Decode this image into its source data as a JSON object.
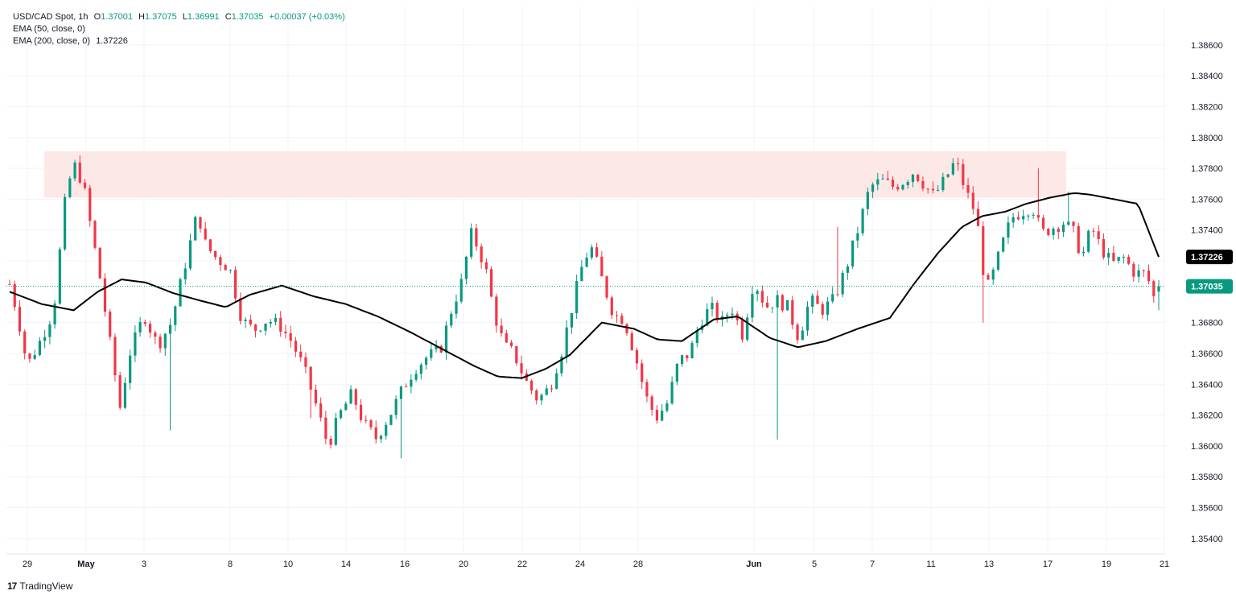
{
  "legend": {
    "symbol": "USD/CAD Spot, 1h",
    "o_label": "O",
    "o": "1.37001",
    "h_label": "H",
    "h": "1.37075",
    "l_label": "L",
    "l": "1.36991",
    "c_label": "C",
    "c": "1.37035",
    "change": "+0.00037 (+0.03%)",
    "ema50": "EMA (50, close, 0)",
    "ema200": "EMA (200, close, 0)",
    "ema200_value": "1.37226"
  },
  "brand": {
    "logo": "17",
    "name": "TradingView"
  },
  "colors": {
    "up": "#089981",
    "down": "#f23645",
    "ema": "#000000",
    "zone": "#fde8e8",
    "grid": "#f0f3fa",
    "last_price": "#089981"
  },
  "chart_data": {
    "type": "candlestick",
    "symbol": "USD/CAD Spot",
    "interval": "1h",
    "ylim": [
      1.353,
      1.3885
    ],
    "y_ticks": [
      "1.35400",
      "1.35600",
      "1.35800",
      "1.36000",
      "1.36200",
      "1.36400",
      "1.36600",
      "1.36800",
      "1.37200",
      "1.37400",
      "1.37600",
      "1.37800",
      "1.38000",
      "1.38200",
      "1.38400",
      "1.38600"
    ],
    "x_tick_labels": [
      "29",
      "May",
      "3",
      "8",
      "10",
      "14",
      "16",
      "20",
      "22",
      "24",
      "28",
      "Jun",
      "5",
      "7",
      "11",
      "13",
      "17",
      "19",
      "21"
    ],
    "price_labels": {
      "ema200": "1.37226",
      "last": "1.37035"
    },
    "last_price": 1.37035,
    "resistance_zone": {
      "low": 1.3761,
      "high": 1.3791
    },
    "price_anchors": [
      [
        0,
        1.3705
      ],
      [
        10,
        1.3685
      ],
      [
        22,
        1.3652
      ],
      [
        40,
        1.367
      ],
      [
        55,
        1.3688
      ],
      [
        70,
        1.3762
      ],
      [
        80,
        1.3783
      ],
      [
        92,
        1.377
      ],
      [
        102,
        1.374
      ],
      [
        112,
        1.3712
      ],
      [
        125,
        1.3668
      ],
      [
        138,
        1.3625
      ],
      [
        150,
        1.366
      ],
      [
        168,
        1.3685
      ],
      [
        185,
        1.3665
      ],
      [
        202,
        1.368
      ],
      [
        218,
        1.3715
      ],
      [
        235,
        1.3752
      ],
      [
        245,
        1.373
      ],
      [
        258,
        1.3722
      ],
      [
        275,
        1.3715
      ],
      [
        290,
        1.3682
      ],
      [
        305,
        1.3675
      ],
      [
        322,
        1.3682
      ],
      [
        338,
        1.3678
      ],
      [
        352,
        1.3668
      ],
      [
        368,
        1.365
      ],
      [
        382,
        1.3628
      ],
      [
        398,
        1.36
      ],
      [
        412,
        1.362
      ],
      [
        428,
        1.3634
      ],
      [
        442,
        1.3615
      ],
      [
        458,
        1.3605
      ],
      [
        475,
        1.362
      ],
      [
        492,
        1.3638
      ],
      [
        506,
        1.365
      ],
      [
        522,
        1.3658
      ],
      [
        538,
        1.3662
      ],
      [
        552,
        1.3688
      ],
      [
        566,
        1.3708
      ],
      [
        576,
        1.3738
      ],
      [
        586,
        1.3728
      ],
      [
        596,
        1.3712
      ],
      [
        606,
        1.3685
      ],
      [
        618,
        1.3665
      ],
      [
        630,
        1.366
      ],
      [
        645,
        1.3642
      ],
      [
        660,
        1.363
      ],
      [
        675,
        1.3638
      ],
      [
        690,
        1.3662
      ],
      [
        705,
        1.3695
      ],
      [
        718,
        1.3722
      ],
      [
        728,
        1.3728
      ],
      [
        742,
        1.3705
      ],
      [
        755,
        1.3685
      ],
      [
        768,
        1.3682
      ],
      [
        782,
        1.3658
      ],
      [
        795,
        1.3632
      ],
      [
        808,
        1.3618
      ],
      [
        822,
        1.3628
      ],
      [
        836,
        1.3655
      ],
      [
        850,
        1.366
      ],
      [
        862,
        1.368
      ],
      [
        876,
        1.369
      ],
      [
        890,
        1.368
      ],
      [
        902,
        1.369
      ],
      [
        916,
        1.3672
      ],
      [
        930,
        1.3708
      ],
      [
        945,
        1.369
      ],
      [
        958,
        1.3695
      ],
      [
        972,
        1.369
      ],
      [
        986,
        1.367
      ],
      [
        1000,
        1.3695
      ],
      [
        1015,
        1.3688
      ],
      [
        1030,
        1.3695
      ],
      [
        1045,
        1.3715
      ],
      [
        1060,
        1.374
      ],
      [
        1075,
        1.3768
      ],
      [
        1090,
        1.3772
      ],
      [
        1105,
        1.3768
      ],
      [
        1118,
        1.3772
      ],
      [
        1130,
        1.3778
      ],
      [
        1142,
        1.377
      ],
      [
        1155,
        1.3762
      ],
      [
        1168,
        1.3772
      ],
      [
        1182,
        1.3785
      ],
      [
        1195,
        1.3765
      ],
      [
        1208,
        1.375
      ],
      [
        1214,
        1.3725
      ],
      [
        1220,
        1.37
      ],
      [
        1228,
        1.371
      ],
      [
        1240,
        1.373
      ],
      [
        1252,
        1.3748
      ],
      [
        1265,
        1.3752
      ],
      [
        1278,
        1.3755
      ],
      [
        1290,
        1.3738
      ],
      [
        1305,
        1.3742
      ],
      [
        1318,
        1.3745
      ],
      [
        1330,
        1.3738
      ],
      [
        1340,
        1.3722
      ],
      [
        1352,
        1.3742
      ],
      [
        1364,
        1.3728
      ],
      [
        1378,
        1.3718
      ],
      [
        1392,
        1.3722
      ],
      [
        1406,
        1.3712
      ],
      [
        1420,
        1.3712
      ],
      [
        1428,
        1.37
      ],
      [
        1432,
        1.3692
      ],
      [
        1436,
        1.37035
      ]
    ],
    "ema200_series": [
      [
        0,
        1.37
      ],
      [
        40,
        1.3692
      ],
      [
        80,
        1.3688
      ],
      [
        110,
        1.37
      ],
      [
        140,
        1.3708
      ],
      [
        170,
        1.3706
      ],
      [
        205,
        1.3699
      ],
      [
        240,
        1.3694
      ],
      [
        270,
        1.369
      ],
      [
        300,
        1.3698
      ],
      [
        340,
        1.3704
      ],
      [
        380,
        1.3697
      ],
      [
        420,
        1.3692
      ],
      [
        460,
        1.3684
      ],
      [
        500,
        1.3674
      ],
      [
        540,
        1.3663
      ],
      [
        580,
        1.3652
      ],
      [
        610,
        1.3645
      ],
      [
        640,
        1.3644
      ],
      [
        670,
        1.365
      ],
      [
        700,
        1.3659
      ],
      [
        740,
        1.368
      ],
      [
        780,
        1.3676
      ],
      [
        810,
        1.3669
      ],
      [
        840,
        1.3668
      ],
      [
        880,
        1.3682
      ],
      [
        910,
        1.3684
      ],
      [
        950,
        1.367
      ],
      [
        985,
        1.3664
      ],
      [
        1020,
        1.3668
      ],
      [
        1060,
        1.3676
      ],
      [
        1100,
        1.3683
      ],
      [
        1130,
        1.3705
      ],
      [
        1160,
        1.3725
      ],
      [
        1190,
        1.3742
      ],
      [
        1215,
        1.3749
      ],
      [
        1245,
        1.3752
      ],
      [
        1270,
        1.3757
      ],
      [
        1300,
        1.3761
      ],
      [
        1330,
        1.3764
      ],
      [
        1350,
        1.3763
      ],
      [
        1380,
        1.376
      ],
      [
        1410,
        1.3757
      ],
      [
        1436,
        1.37226
      ]
    ],
    "spikes": [
      [
        200,
        "L",
        1.361
      ],
      [
        378,
        "L",
        1.3618
      ],
      [
        488,
        "L",
        1.3592
      ],
      [
        962,
        "L",
        1.3604
      ],
      [
        1033,
        "H",
        1.3742
      ],
      [
        1215,
        "L",
        1.368
      ],
      [
        1286,
        "H",
        1.378
      ],
      [
        1326,
        "H",
        1.3765
      ]
    ]
  }
}
